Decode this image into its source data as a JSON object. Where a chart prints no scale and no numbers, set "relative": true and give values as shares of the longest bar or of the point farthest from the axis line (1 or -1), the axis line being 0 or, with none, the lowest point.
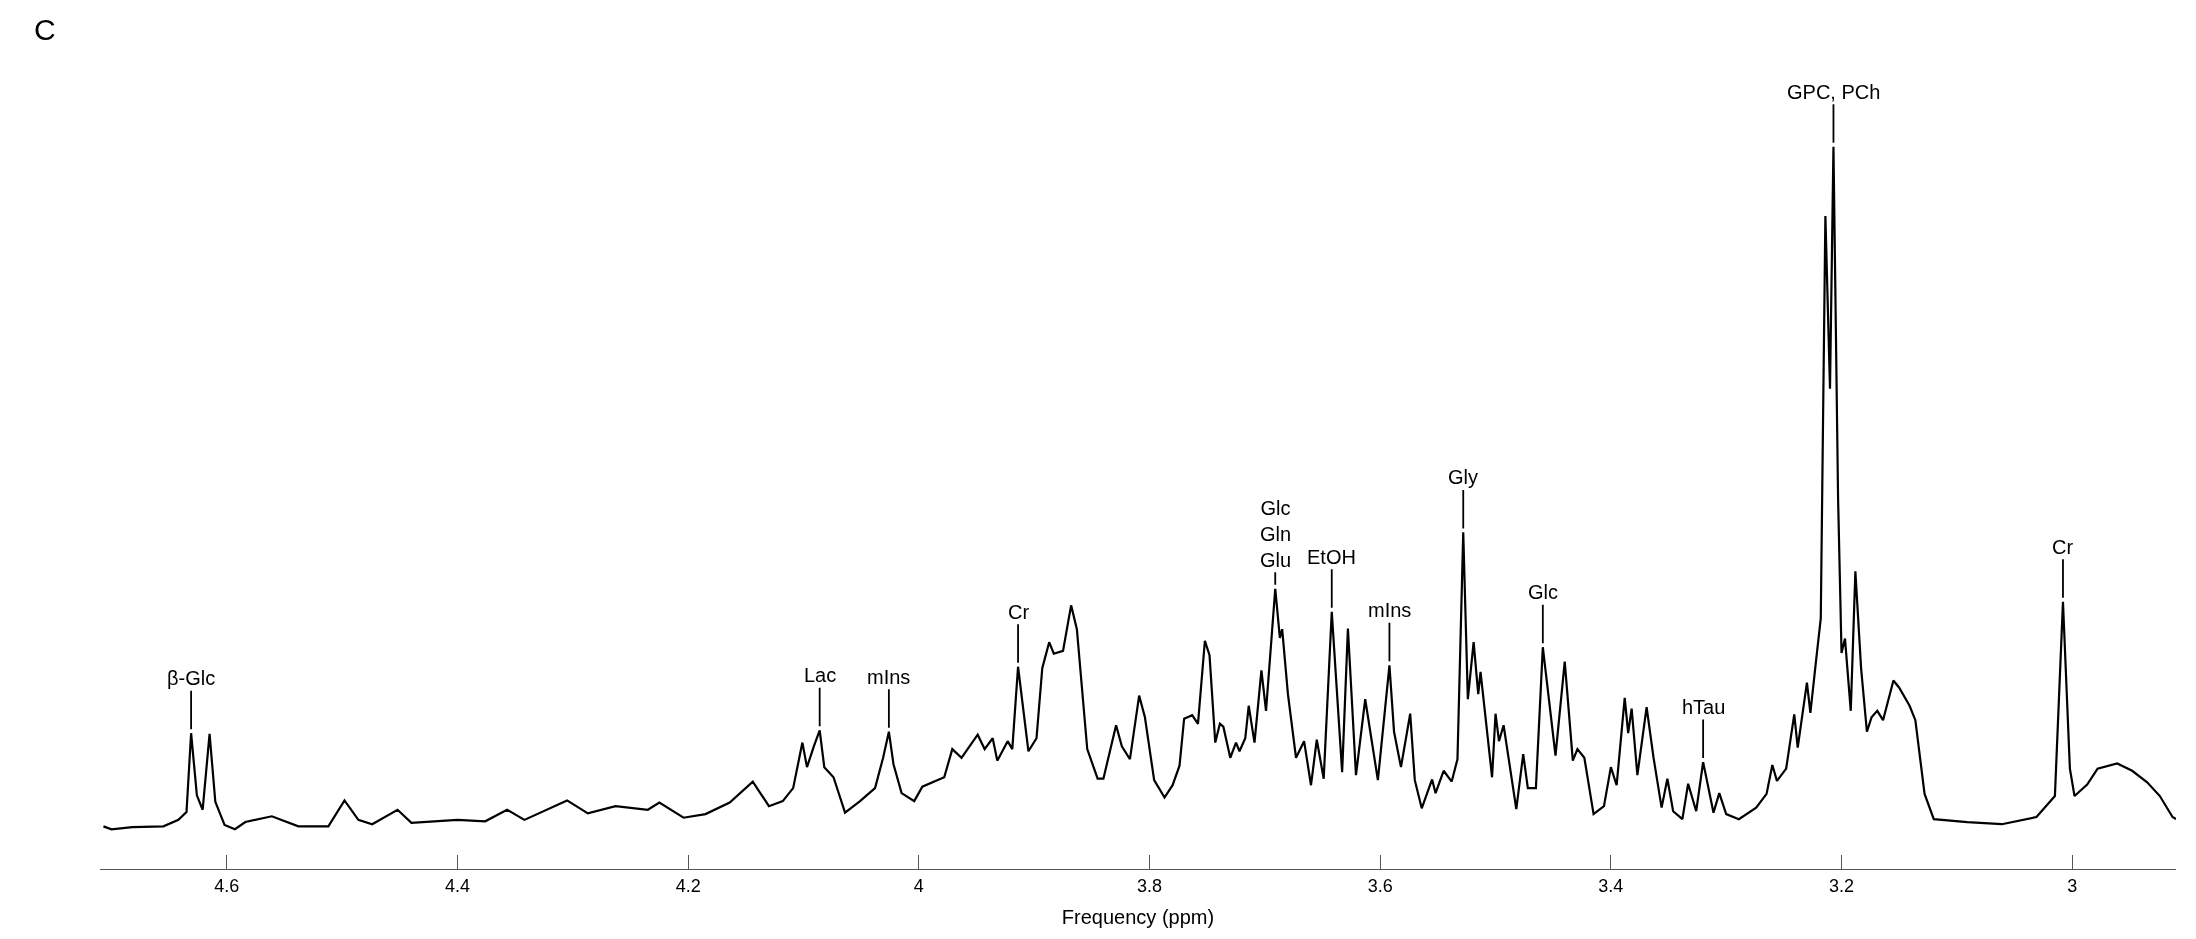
{
  "chart_data": {
    "type": "line",
    "relative": true,
    "xlabel": "Frequency (ppm)",
    "xlim": [
      4.71,
      2.91
    ],
    "xticks": [
      4.6,
      4.4,
      4.2,
      4,
      3.8,
      3.6,
      3.4,
      3.2,
      3
    ],
    "x": [
      4.707,
      4.7,
      4.682,
      4.655,
      4.642,
      4.635,
      4.631,
      4.626,
      4.621,
      4.615,
      4.61,
      4.602,
      4.593,
      4.584,
      4.561,
      4.538,
      4.512,
      4.498,
      4.486,
      4.474,
      4.452,
      4.44,
      4.4,
      4.376,
      4.357,
      4.342,
      4.305,
      4.287,
      4.263,
      4.235,
      4.225,
      4.204,
      4.185,
      4.164,
      4.144,
      4.13,
      4.118,
      4.109,
      4.101,
      4.097,
      4.091,
      4.086,
      4.082,
      4.074,
      4.064,
      4.051,
      4.038,
      4.031,
      4.026,
      4.022,
      4.015,
      4.004,
      3.997,
      3.978,
      3.971,
      3.963,
      3.949,
      3.943,
      3.936,
      3.932,
      3.923,
      3.919,
      3.914,
      3.905,
      3.898,
      3.893,
      3.887,
      3.883,
      3.875,
      3.868,
      3.863,
      3.854,
      3.845,
      3.84,
      3.829,
      3.824,
      3.817,
      3.809,
      3.804,
      3.796,
      3.787,
      3.78,
      3.774,
      3.77,
      3.763,
      3.758,
      3.752,
      3.748,
      3.743,
      3.739,
      3.736,
      3.73,
      3.725,
      3.722,
      3.717,
      3.714,
      3.709,
      3.703,
      3.699,
      3.691,
      3.687,
      3.685,
      3.68,
      3.673,
      3.666,
      3.66,
      3.655,
      3.649,
      3.642,
      3.633,
      3.628,
      3.621,
      3.613,
      3.602,
      3.592,
      3.588,
      3.582,
      3.574,
      3.57,
      3.564,
      3.555,
      3.552,
      3.545,
      3.538,
      3.533,
      3.528,
      3.524,
      3.519,
      3.515,
      3.513,
      3.503,
      3.5,
      3.497,
      3.493,
      3.482,
      3.476,
      3.472,
      3.465,
      3.459,
      3.448,
      3.44,
      3.433,
      3.429,
      3.423,
      3.415,
      3.406,
      3.4,
      3.395,
      3.388,
      3.385,
      3.382,
      3.377,
      3.369,
      3.363,
      3.356,
      3.351,
      3.346,
      3.338,
      3.333,
      3.326,
      3.32,
      3.311,
      3.306,
      3.3,
      3.289,
      3.274,
      3.265,
      3.26,
      3.256,
      3.248,
      3.241,
      3.238,
      3.23,
      3.227,
      3.222,
      3.218,
      3.214,
      3.21,
      3.207,
      3.203,
      3.2,
      3.197,
      3.192,
      3.188,
      3.183,
      3.178,
      3.174,
      3.169,
      3.164,
      3.155,
      3.15,
      3.141,
      3.136,
      3.128,
      3.12,
      3.091,
      3.061,
      3.031,
      3.015,
      3.008,
      3.002,
      2.998,
      2.987,
      2.978,
      2.961,
      2.948,
      2.935,
      2.924,
      2.913,
      2.91
    ],
    "series": [
      {
        "color": "#000000",
        "values": [
          0.059,
          0.055,
          0.058,
          0.059,
          0.068,
          0.079,
          0.188,
          0.102,
          0.082,
          0.187,
          0.093,
          0.061,
          0.055,
          0.065,
          0.073,
          0.059,
          0.059,
          0.095,
          0.068,
          0.062,
          0.082,
          0.064,
          0.068,
          0.066,
          0.082,
          0.068,
          0.095,
          0.077,
          0.087,
          0.082,
          0.092,
          0.071,
          0.076,
          0.092,
          0.121,
          0.087,
          0.094,
          0.112,
          0.175,
          0.141,
          0.17,
          0.192,
          0.141,
          0.127,
          0.078,
          0.094,
          0.112,
          0.154,
          0.19,
          0.145,
          0.105,
          0.094,
          0.114,
          0.127,
          0.166,
          0.154,
          0.186,
          0.166,
          0.181,
          0.15,
          0.177,
          0.166,
          0.28,
          0.163,
          0.181,
          0.278,
          0.314,
          0.298,
          0.302,
          0.365,
          0.332,
          0.166,
          0.125,
          0.125,
          0.199,
          0.17,
          0.152,
          0.24,
          0.21,
          0.123,
          0.099,
          0.116,
          0.143,
          0.208,
          0.213,
          0.201,
          0.316,
          0.296,
          0.175,
          0.201,
          0.197,
          0.154,
          0.175,
          0.163,
          0.181,
          0.226,
          0.175,
          0.275,
          0.219,
          0.388,
          0.32,
          0.332,
          0.242,
          0.154,
          0.177,
          0.116,
          0.179,
          0.125,
          0.356,
          0.134,
          0.333,
          0.13,
          0.235,
          0.123,
          0.282,
          0.19,
          0.141,
          0.215,
          0.123,
          0.084,
          0.124,
          0.105,
          0.136,
          0.121,
          0.152,
          0.466,
          0.235,
          0.314,
          0.242,
          0.273,
          0.127,
          0.215,
          0.177,
          0.199,
          0.083,
          0.159,
          0.112,
          0.112,
          0.307,
          0.157,
          0.287,
          0.15,
          0.166,
          0.154,
          0.076,
          0.087,
          0.141,
          0.116,
          0.237,
          0.188,
          0.222,
          0.13,
          0.224,
          0.154,
          0.085,
          0.125,
          0.08,
          0.069,
          0.118,
          0.08,
          0.148,
          0.078,
          0.105,
          0.076,
          0.069,
          0.085,
          0.104,
          0.144,
          0.122,
          0.139,
          0.214,
          0.168,
          0.258,
          0.216,
          0.29,
          0.347,
          0.904,
          0.665,
          1.0,
          0.514,
          0.299,
          0.319,
          0.219,
          0.412,
          0.277,
          0.19,
          0.21,
          0.219,
          0.206,
          0.261,
          0.251,
          0.226,
          0.206,
          0.104,
          0.069,
          0.065,
          0.062,
          0.072,
          0.101,
          0.37,
          0.139,
          0.101,
          0.117,
          0.139,
          0.146,
          0.136,
          0.12,
          0.101,
          0.072,
          0.069
        ]
      }
    ],
    "annotations": [
      "C",
      {
        "text": "β-Glc",
        "x": 4.631,
        "y": 0.188
      },
      {
        "text": "Lac",
        "x": 4.086,
        "y": 0.192
      },
      {
        "text": "mIns",
        "x": 4.026,
        "y": 0.19
      },
      {
        "text": "Cr",
        "x": 3.914,
        "y": 0.28
      },
      {
        "text": "Glc\nGln\nGlu",
        "x": 3.691,
        "y": 0.388
      },
      {
        "text": "EtOH",
        "x": 3.642,
        "y": 0.356
      },
      {
        "text": "mIns",
        "x": 3.592,
        "y": 0.282
      },
      {
        "text": "Gly",
        "x": 3.528,
        "y": 0.466
      },
      {
        "text": "Glc",
        "x": 3.459,
        "y": 0.307
      },
      {
        "text": "hTau",
        "x": 3.32,
        "y": 0.148
      },
      {
        "text": "GPC, PCh",
        "x": 3.207,
        "y": 1.0
      },
      {
        "text": "Cr",
        "x": 3.008,
        "y": 0.37
      }
    ]
  }
}
